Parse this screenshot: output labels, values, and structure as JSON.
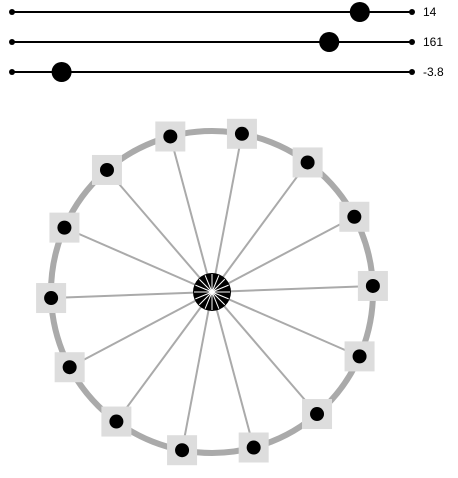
{
  "sliders": [
    {
      "value_label": "14",
      "value": 14,
      "min": -6,
      "max": 17,
      "name": "slider-spokes"
    },
    {
      "value_label": "161",
      "value": 161,
      "min": -180,
      "max": 250,
      "name": "slider-radius"
    },
    {
      "value_label": "-3.8",
      "value": -3.8,
      "min": -10,
      "max": 40,
      "name": "slider-rotation"
    }
  ],
  "wheel": {
    "spoke_count": 14,
    "rim_color": "#aaaaaa",
    "spoke_color": "#aaaaaa",
    "handle_fill": "#dddddd",
    "dot_color": "#000000"
  }
}
